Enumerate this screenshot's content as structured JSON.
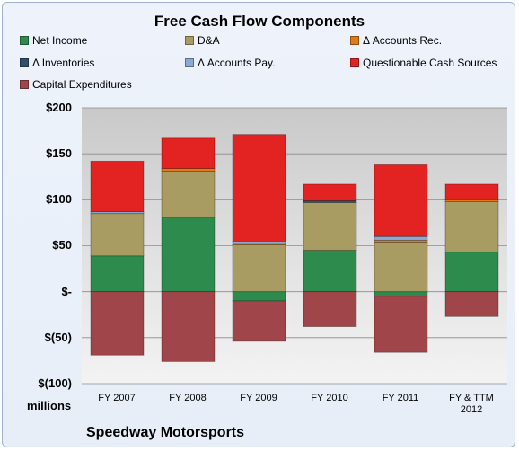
{
  "chart_data": {
    "type": "bar",
    "stacked": true,
    "title": "Free Cash Flow Components",
    "categories": [
      "FY 2007",
      "FY 2008",
      "FY 2009",
      "FY 2010",
      "FY 2011",
      "FY & TTM\n2012"
    ],
    "series": [
      {
        "name": "Net Income",
        "color": "#2e8b4e",
        "values": [
          39,
          81,
          -10,
          45,
          -5,
          43
        ]
      },
      {
        "name": "D&A",
        "color": "#a89c63",
        "values": [
          46,
          50,
          51,
          52,
          54,
          55
        ]
      },
      {
        "name": "Δ Accounts Rec.",
        "color": "#e07b1a",
        "values": [
          0,
          3,
          2,
          0,
          2,
          2
        ]
      },
      {
        "name": "Δ Inventories",
        "color": "#2f4f6f",
        "values": [
          0,
          0,
          0,
          2,
          0,
          0
        ]
      },
      {
        "name": "Δ Accounts Pay.",
        "color": "#8aa9d6",
        "values": [
          2,
          0,
          2,
          0,
          4,
          0
        ]
      },
      {
        "name": "Questionable Cash Sources",
        "color": "#e32222",
        "values": [
          55,
          33,
          116,
          18,
          78,
          17
        ]
      },
      {
        "name": "Capital Expenditures",
        "color": "#a0464a",
        "values": [
          -69,
          -76,
          -44,
          -38,
          -61,
          -27
        ]
      }
    ],
    "ylim": [
      -100,
      200
    ],
    "yticks": [
      200,
      150,
      100,
      50,
      0,
      -50,
      -100
    ],
    "ytick_labels": [
      "$200",
      "$150",
      "$100",
      "$50",
      "$-",
      "$(50)",
      "$(100)"
    ],
    "ylabel": "millions",
    "grid": true,
    "legend_position": "top"
  },
  "footer": {
    "company": "Speedway Motorsports"
  }
}
